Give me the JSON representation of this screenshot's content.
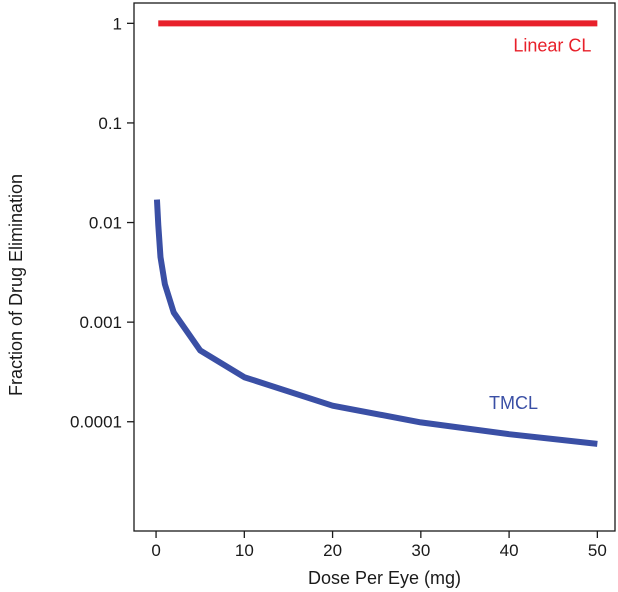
{
  "chart_data": {
    "type": "line",
    "xlabel": "Dose Per Eye (mg)",
    "ylabel": "Fraction of Drug Elimination",
    "xlim": [
      -2.5,
      52
    ],
    "ylim": [
      8e-06,
      1.6
    ],
    "yscale": "log",
    "x_ticks": [
      0,
      10,
      20,
      30,
      40,
      50
    ],
    "x_tick_labels": [
      "0",
      "10",
      "20",
      "30",
      "40",
      "50"
    ],
    "y_ticks": [
      1,
      0.1,
      0.01,
      0.001,
      0.0001
    ],
    "y_tick_labels": [
      "1",
      "0.1",
      "0.01",
      "0.001",
      "0.0001"
    ],
    "grid": false,
    "series": [
      {
        "name": "Linear CL",
        "color": "#e8202a",
        "x": [
          0.25,
          50
        ],
        "y": [
          1,
          1
        ]
      },
      {
        "name": "TMCL",
        "color": "#3a4fa5",
        "x": [
          0.1,
          0.25,
          0.5,
          1,
          2,
          5,
          10,
          20,
          30,
          40,
          50
        ],
        "y": [
          0.017,
          0.0095,
          0.0045,
          0.0024,
          0.00125,
          0.00052,
          0.00028,
          0.000145,
          9.85e-05,
          7.5e-05,
          6e-05
        ]
      }
    ]
  }
}
